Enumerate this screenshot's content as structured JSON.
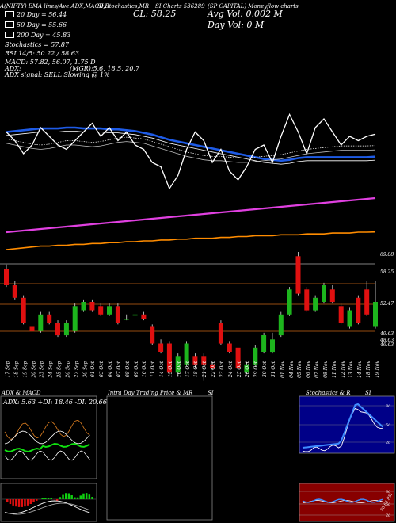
{
  "header": {
    "title_left": "A(NIFTY) EMA lines/Ave.ADX,MACD,R",
    "title_mid": "SI,Stochastics,MR",
    "chart_label": "SI Charts 536289",
    "company": "(SP CAPITAL) Moneyflow charts",
    "close_label": "CL: 58.25",
    "avg_vol": "Avg Vol: 0.002  M",
    "day_vol": "Day Vol: 0   M",
    "ema_20": "20 Day = 56.44",
    "ema_50": "50 Day = 55.66",
    "ema_200": "200 Day = 45.83",
    "stoch": "Stochastics = 57.87",
    "rsi": "RSI 14/5: 50.22 / 58.63",
    "macd": "MACD: 57.82, 56.07, 1.75 D",
    "adx": "ADX:",
    "mgr": "(MGR):5.6, 18.5, 20.7",
    "adx_signal": "ADX  signal: SELL  Slowing @ 1%"
  },
  "colors": {
    "ema20": "#ffffff",
    "ema50": "#1e5be6",
    "ema200": "#ff8c00",
    "ema_long": "#e040e0",
    "up": "#1db51d",
    "down": "#e01010"
  },
  "price_axis_labels": [
    "69.88",
    "58.25",
    "52.47",
    "49.63",
    "48.63",
    "46.63"
  ],
  "dates": [
    "17 Sep",
    "18 Sep",
    "19 Sep",
    "20 Sep",
    "23 Sep",
    "24 Sep",
    "25 Sep",
    "26 Sep",
    "27 Sep",
    "30 Sep",
    "01 Oct",
    "03 Oct",
    "04 Oct",
    "07 Oct",
    "08 Oct",
    "09 Oct",
    "10 Oct",
    "11 Oct",
    "14 Oct",
    "15 Oct",
    "16 Oct",
    "17 Oct",
    "18 Oct",
    "21 Oct",
    "22 Oct",
    "23 Oct",
    "24 Oct",
    "25 Oct",
    "28 Oct",
    "29 Oct",
    "30 Oct",
    "31 Oct",
    "01 Nov",
    "04 Nov",
    "05 Nov",
    "06 Nov",
    "07 Nov",
    "08 Nov",
    "11 Nov",
    "12 Nov",
    "13 Nov",
    "14 Nov",
    "18 Nov",
    "19 Nov"
  ],
  "panels": {
    "adx_title": "ADX  & MACD",
    "adx_values": "ADX: 5.63  +DI: 18.46  -DI: 20.66",
    "intraday_title": "Intra  Day Trading Price  & MR",
    "intraday_si": "SI",
    "stoch_title": "Stochastics & R",
    "stoch_si": "SI",
    "stoch_ticks": [
      "80",
      "50",
      "20"
    ],
    "rsi_ticks": [
      "80",
      "50",
      "20"
    ],
    "rsi_tag": "58.63 RSI"
  },
  "chart_data": {
    "type": "line",
    "title": "SP CAPITAL",
    "ylabel": "",
    "series": [
      {
        "name": "20 Day",
        "values": [
          57.2,
          57.0,
          56.8,
          56.6,
          56.5,
          56.6,
          56.8,
          57.0,
          57.0,
          56.9,
          56.8,
          56.9,
          57.1,
          57.3,
          57.4,
          57.3,
          57.2,
          56.9,
          56.6,
          56.3,
          56.0,
          55.7,
          55.5,
          55.3,
          55.2,
          55.2,
          55.1,
          55.0,
          55.0,
          55.1,
          55.2,
          55.3,
          55.4,
          55.6,
          55.8,
          56.0,
          56.1,
          56.2,
          56.3,
          56.4,
          56.4,
          56.4,
          56.4,
          56.44
        ]
      },
      {
        "name": "50 Day",
        "values": [
          58.5,
          58.6,
          58.7,
          58.8,
          58.9,
          58.9,
          58.9,
          59.0,
          59.0,
          58.9,
          58.9,
          58.9,
          58.8,
          58.8,
          58.7,
          58.6,
          58.4,
          58.2,
          57.9,
          57.6,
          57.4,
          57.2,
          57.0,
          56.8,
          56.6,
          56.4,
          56.2,
          56.0,
          55.8,
          55.6,
          55.4,
          55.3,
          55.2,
          55.3,
          55.5,
          55.6,
          55.6,
          55.6,
          55.6,
          55.6,
          55.6,
          55.6,
          55.6,
          55.66
        ]
      },
      {
        "name": "200 Day",
        "values": [
          43.8,
          43.9,
          44.0,
          44.1,
          44.2,
          44.2,
          44.3,
          44.3,
          44.4,
          44.4,
          44.5,
          44.5,
          44.6,
          44.6,
          44.7,
          44.7,
          44.8,
          44.8,
          44.9,
          44.9,
          45.0,
          45.0,
          45.1,
          45.1,
          45.1,
          45.2,
          45.2,
          45.3,
          45.3,
          45.4,
          45.4,
          45.4,
          45.5,
          45.5,
          45.5,
          45.6,
          45.6,
          45.6,
          45.7,
          45.7,
          45.7,
          45.8,
          45.8,
          45.83
        ]
      },
      {
        "name": "Close",
        "values": [
          58.5,
          57.5,
          56.0,
          57.0,
          59.0,
          58.0,
          57.0,
          56.5,
          57.5,
          58.5,
          59.5,
          58.0,
          59.0,
          57.5,
          58.5,
          57.0,
          56.5,
          55.0,
          54.5,
          52.0,
          53.5,
          56.5,
          58.5,
          57.5,
          55.0,
          56.5,
          54.0,
          53.0,
          54.5,
          56.5,
          57.0,
          55.0,
          58.0,
          60.5,
          58.5,
          56.0,
          59.0,
          60.0,
          58.5,
          57.0,
          58.0,
          57.5,
          58.0,
          58.25
        ]
      }
    ],
    "candles": {
      "open": [
        64.0,
        62.0,
        60.5,
        57.0,
        56.5,
        58.5,
        57.5,
        56.0,
        56.5,
        59.0,
        60.0,
        59.5,
        58.5,
        59.5,
        58.0,
        58.5,
        58.5,
        57.0,
        55.0,
        55.0,
        51.5,
        52.5,
        53.5,
        53.5,
        52.5,
        57.5,
        55.0,
        54.5,
        51.5,
        52.5,
        54.0,
        54.0,
        56.0,
        58.5,
        65.5,
        61.5,
        59.0,
        60.0,
        61.5,
        59.5,
        57.0,
        60.5,
        61.5,
        57.0
      ],
      "close": [
        62.0,
        60.5,
        57.5,
        56.5,
        58.5,
        57.5,
        56.0,
        57.5,
        59.5,
        60.0,
        59.0,
        58.5,
        59.5,
        57.5,
        58.0,
        58.5,
        58.0,
        55.0,
        54.0,
        51.5,
        53.5,
        55.0,
        52.5,
        52.5,
        52.0,
        55.0,
        54.0,
        52.0,
        52.5,
        54.5,
        56.0,
        55.5,
        58.5,
        61.5,
        61.0,
        59.0,
        60.5,
        62.0,
        60.0,
        57.5,
        59.0,
        57.5,
        58.5,
        60.0
      ],
      "high": [
        64.5,
        62.5,
        60.8,
        57.5,
        58.8,
        58.8,
        57.8,
        57.8,
        59.8,
        60.3,
        60.3,
        59.8,
        59.8,
        59.8,
        58.5,
        58.8,
        58.8,
        57.3,
        55.5,
        55.3,
        53.8,
        55.3,
        53.8,
        53.8,
        52.8,
        57.8,
        55.3,
        54.8,
        52.8,
        54.8,
        56.3,
        56.3,
        58.8,
        61.8,
        66.0,
        61.8,
        60.8,
        62.3,
        62.0,
        59.8,
        59.3,
        60.8,
        62.5,
        62.5
      ],
      "low": [
        61.8,
        60.3,
        57.3,
        56.3,
        56.3,
        57.3,
        55.8,
        55.8,
        56.3,
        58.8,
        58.8,
        58.3,
        58.3,
        57.3,
        57.8,
        58.3,
        57.8,
        54.8,
        53.8,
        51.3,
        51.0,
        52.3,
        52.0,
        50.5,
        51.8,
        54.8,
        53.8,
        51.8,
        51.3,
        52.3,
        53.8,
        53.8,
        55.8,
        58.3,
        60.8,
        58.8,
        58.8,
        59.8,
        59.8,
        57.3,
        56.8,
        57.3,
        58.3,
        56.8
      ]
    },
    "axis_labels": [
      "69.88",
      "58.25",
      "52.47",
      "49.63",
      "48.63",
      "46.63"
    ]
  }
}
